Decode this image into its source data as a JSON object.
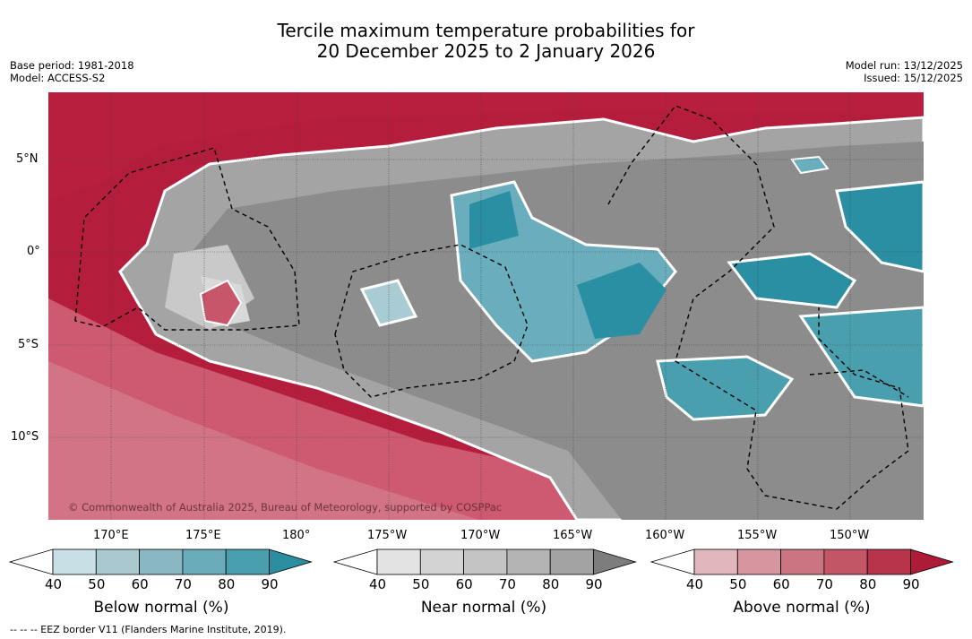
{
  "title": {
    "line1": "Tercile maximum temperature probabilities for",
    "line2": "20 December 2025 to 2 January 2026"
  },
  "meta_left": {
    "base_period": "Base period: 1981-2018",
    "model": "Model: ACCESS-S2"
  },
  "meta_right": {
    "model_run": "Model run: 13/12/2025",
    "issued": "Issued: 15/12/2025"
  },
  "map": {
    "lat_labels": [
      "5°N",
      "0°",
      "5°S",
      "10°S"
    ],
    "lon_labels": [
      "170°E",
      "175°E",
      "180°",
      "175°W",
      "170°W",
      "165°W",
      "160°W",
      "155°W",
      "150°W"
    ],
    "copyright": "© Commonwealth of Australia 2025, Bureau of Meteorology, supported by COSPPac",
    "colors": {
      "above_dark": "#b41e3c",
      "above_mid": "#d0647a",
      "above_light": "#e3a0ad",
      "near_dark": "#8a8a8a",
      "near_mid": "#a6a6a6",
      "near_light": "#d8d8d8",
      "below_dark": "#2a8fa3",
      "below_mid": "#6aaebd",
      "below_light": "#a9cbd3"
    }
  },
  "colorbars": [
    {
      "label": "Below normal (%)",
      "ticks": [
        "40",
        "50",
        "60",
        "70",
        "80",
        "90"
      ],
      "colors": [
        "#ffffff",
        "#c7dfe5",
        "#a9c8cf",
        "#89b8c3",
        "#6aacb9",
        "#4a9fae",
        "#2b8da0"
      ]
    },
    {
      "label": "Near normal (%)",
      "ticks": [
        "40",
        "50",
        "60",
        "70",
        "80",
        "90"
      ],
      "colors": [
        "#ffffff",
        "#e3e3e3",
        "#d3d3d3",
        "#c4c4c4",
        "#b4b4b4",
        "#a3a3a3",
        "#7d7d7d"
      ]
    },
    {
      "label": "Above normal (%)",
      "ticks": [
        "40",
        "50",
        "60",
        "70",
        "80",
        "90"
      ],
      "colors": [
        "#ffffff",
        "#e2b6bd",
        "#d7959f",
        "#cc7582",
        "#c25566",
        "#b8344a",
        "#ae1b36"
      ]
    }
  ],
  "footnote": "--  --  -- EEZ border V11 (Flanders Marine Institute, 2019)."
}
